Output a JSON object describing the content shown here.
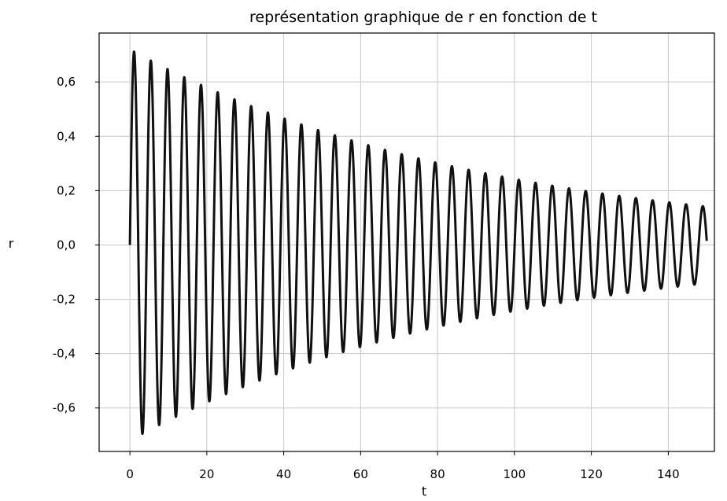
{
  "chart_data": {
    "type": "line",
    "title": "représentation graphique de r en fonction de t",
    "xlabel": "t",
    "ylabel": "r",
    "xlim": [
      -8,
      152
    ],
    "ylim": [
      -0.76,
      0.78
    ],
    "xticks": [
      0,
      20,
      40,
      60,
      80,
      100,
      120,
      140
    ],
    "xtick_labels": [
      "0",
      "20",
      "40",
      "60",
      "80",
      "100",
      "120",
      "140"
    ],
    "yticks": [
      -0.6,
      -0.4,
      -0.2,
      0.0,
      0.2,
      0.4,
      0.6
    ],
    "ytick_labels": [
      "-0,6",
      "-0,4",
      "-0,2",
      "0,0",
      "0,2",
      "0,4",
      "0,6"
    ],
    "grid": true,
    "series": [
      {
        "color": "#111111",
        "function": {
          "form": "r(t) = A * exp(-t / tau) * sin(2*pi*t / T)",
          "A": 0.72,
          "tau": 92,
          "T": 4.35,
          "t_start": 0,
          "t_end": 150
        },
        "peaks": [
          {
            "t": 1.1,
            "r": 0.71
          },
          {
            "t": 3.3,
            "r": -0.69
          },
          {
            "t": 5.4,
            "r": 0.68
          },
          {
            "t": 7.6,
            "r": -0.66
          },
          {
            "t": 9.8,
            "r": 0.65
          },
          {
            "t": 12.0,
            "r": -0.63
          },
          {
            "t": 14.2,
            "r": 0.62
          },
          {
            "t": 16.3,
            "r": -0.6
          },
          {
            "t": 18.5,
            "r": 0.59
          },
          {
            "t": 20.7,
            "r": -0.57
          },
          {
            "t": 22.9,
            "r": 0.56
          },
          {
            "t": 25.0,
            "r": -0.55
          },
          {
            "t": 27.2,
            "r": 0.54
          },
          {
            "t": 29.4,
            "r": -0.52
          },
          {
            "t": 31.6,
            "r": 0.51
          },
          {
            "t": 33.8,
            "r": -0.5
          },
          {
            "t": 35.9,
            "r": 0.49
          },
          {
            "t": 38.1,
            "r": -0.48
          },
          {
            "t": 40.3,
            "r": 0.46
          },
          {
            "t": 42.5,
            "r": -0.45
          },
          {
            "t": 44.6,
            "r": 0.44
          },
          {
            "t": 46.8,
            "r": -0.43
          },
          {
            "t": 49.0,
            "r": 0.42
          },
          {
            "t": 51.2,
            "r": -0.41
          },
          {
            "t": 53.4,
            "r": 0.4
          },
          {
            "t": 55.5,
            "r": -0.39
          },
          {
            "t": 57.7,
            "r": 0.38
          },
          {
            "t": 59.9,
            "r": -0.37
          },
          {
            "t": 62.1,
            "r": 0.36
          },
          {
            "t": 64.2,
            "r": -0.36
          },
          {
            "t": 66.4,
            "r": 0.35
          },
          {
            "t": 68.6,
            "r": -0.34
          },
          {
            "t": 70.8,
            "r": 0.33
          },
          {
            "t": 73.0,
            "r": -0.32
          },
          {
            "t": 75.1,
            "r": 0.32
          },
          {
            "t": 77.3,
            "r": -0.31
          },
          {
            "t": 79.5,
            "r": 0.3
          },
          {
            "t": 81.7,
            "r": -0.29
          },
          {
            "t": 83.8,
            "r": 0.29
          },
          {
            "t": 86.0,
            "r": -0.28
          },
          {
            "t": 88.2,
            "r": 0.27
          },
          {
            "t": 90.4,
            "r": -0.27
          },
          {
            "t": 92.6,
            "r": 0.26
          },
          {
            "t": 94.7,
            "r": -0.25
          },
          {
            "t": 96.9,
            "r": 0.25
          },
          {
            "t": 99.1,
            "r": -0.24
          },
          {
            "t": 101.3,
            "r": 0.24
          },
          {
            "t": 103.4,
            "r": -0.23
          },
          {
            "t": 105.6,
            "r": 0.23
          },
          {
            "t": 107.8,
            "r": -0.22
          },
          {
            "t": 110.0,
            "r": 0.22
          },
          {
            "t": 112.2,
            "r": -0.21
          },
          {
            "t": 114.3,
            "r": 0.21
          },
          {
            "t": 116.5,
            "r": -0.2
          },
          {
            "t": 118.7,
            "r": 0.2
          },
          {
            "t": 120.9,
            "r": -0.19
          },
          {
            "t": 123.0,
            "r": 0.19
          },
          {
            "t": 125.2,
            "r": -0.18
          },
          {
            "t": 127.4,
            "r": 0.18
          },
          {
            "t": 129.6,
            "r": -0.17
          },
          {
            "t": 131.8,
            "r": 0.17
          },
          {
            "t": 133.9,
            "r": -0.17
          },
          {
            "t": 136.1,
            "r": 0.16
          },
          {
            "t": 138.3,
            "r": -0.16
          },
          {
            "t": 140.5,
            "r": 0.16
          },
          {
            "t": 142.6,
            "r": -0.15
          },
          {
            "t": 144.8,
            "r": 0.15
          },
          {
            "t": 147.0,
            "r": -0.15
          },
          {
            "t": 149.2,
            "r": 0.14
          }
        ]
      }
    ]
  }
}
